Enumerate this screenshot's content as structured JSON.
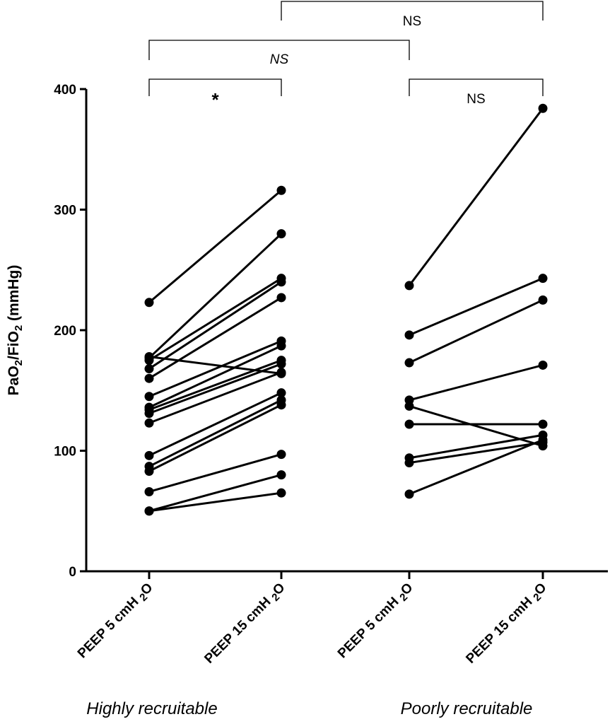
{
  "chart_data": {
    "type": "line",
    "ylabel_parts": [
      "PaO",
      "2",
      "/FiO",
      "2",
      " (mmHg)"
    ],
    "ylim": [
      0,
      400
    ],
    "yticks": [
      0,
      100,
      200,
      300,
      400
    ],
    "ytick_labels": [
      "0",
      "100",
      "200",
      "300",
      "400"
    ],
    "categories": [
      [
        "PEEP 5 cmH ",
        "2",
        "O"
      ],
      [
        "PEEP 15 cmH ",
        "2",
        "O"
      ],
      [
        "PEEP 5 cmH ",
        "2",
        "O"
      ],
      [
        "PEEP 15 cmH ",
        "2",
        "O"
      ]
    ],
    "groups": [
      {
        "label": "Highly recruitable",
        "categories": [
          0,
          1
        ]
      },
      {
        "label": "Poorly recruitable",
        "categories": [
          2,
          3
        ]
      }
    ],
    "paired_series": [
      {
        "group": 0,
        "pairs": [
          [
            223,
            316
          ],
          [
            177,
            280
          ],
          [
            175,
            243
          ],
          [
            168,
            240
          ],
          [
            160,
            227
          ],
          [
            145,
            191
          ],
          [
            136,
            187
          ],
          [
            134,
            175
          ],
          [
            131,
            172
          ],
          [
            123,
            165
          ],
          [
            178,
            164
          ],
          [
            96,
            148
          ],
          [
            87,
            142
          ],
          [
            83,
            138
          ],
          [
            66,
            97
          ],
          [
            50,
            80
          ],
          [
            50,
            65
          ]
        ]
      },
      {
        "group": 1,
        "pairs": [
          [
            237,
            384
          ],
          [
            196,
            243
          ],
          [
            173,
            225
          ],
          [
            142,
            171
          ],
          [
            122,
            122
          ],
          [
            137,
            104
          ],
          [
            94,
            113
          ],
          [
            90,
            107
          ],
          [
            64,
            109
          ]
        ]
      }
    ],
    "annotations": [
      {
        "from": 0,
        "to": 1,
        "label": "*",
        "italic": false
      },
      {
        "from": 2,
        "to": 3,
        "label": "NS",
        "italic": false
      },
      {
        "from": 0,
        "to": 2,
        "label": "NS",
        "italic": true
      },
      {
        "from": 1,
        "to": 3,
        "label": "NS",
        "italic": false
      }
    ],
    "grid": false,
    "legend": "none"
  }
}
